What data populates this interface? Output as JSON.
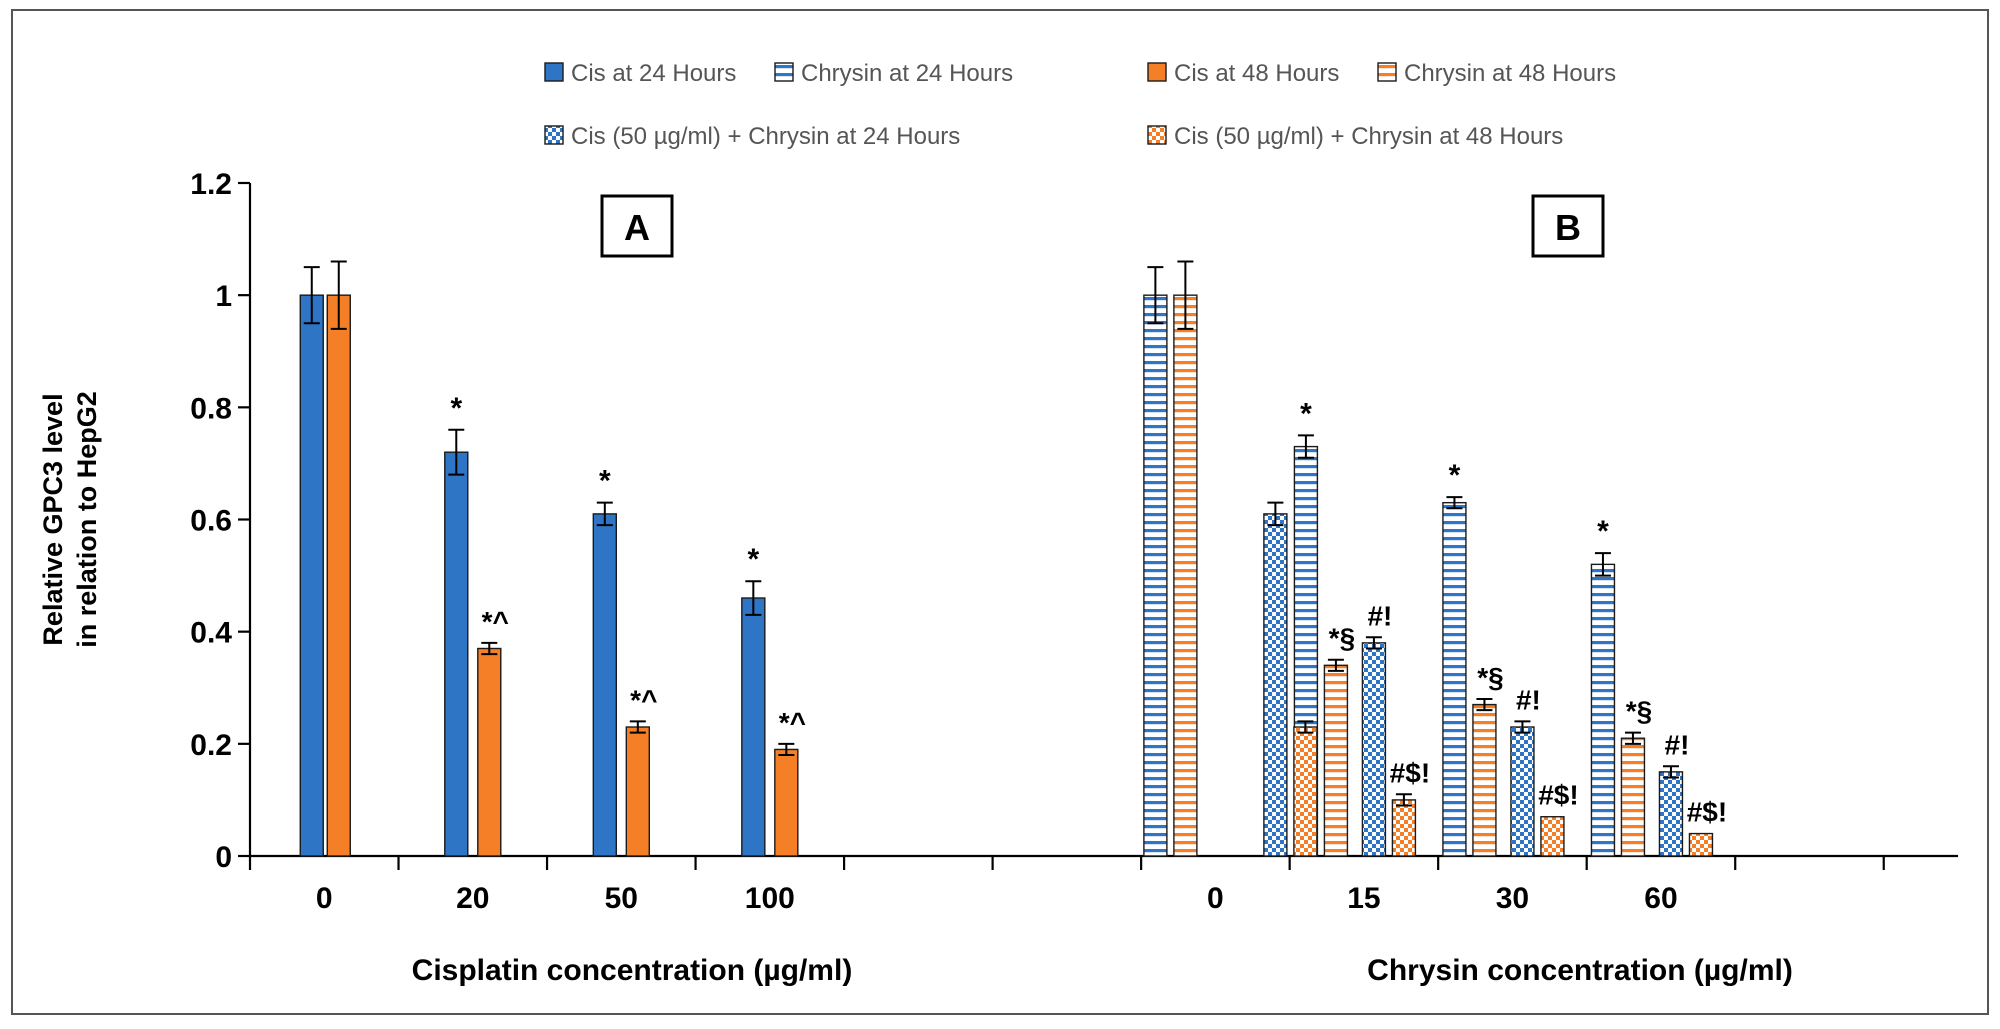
{
  "chart_data": {
    "type": "bar",
    "ylabel": [
      "Relative GPC3 level",
      "in relation to HepG2"
    ],
    "ylim": [
      0,
      1.2
    ],
    "yticks": [
      0,
      0.2,
      0.4,
      0.6,
      0.8,
      1,
      1.2
    ],
    "ytick_labels": [
      "0",
      "0.2",
      "0.4",
      "0.6",
      "0.8",
      "1",
      "1.2"
    ],
    "legend": {
      "placement": "top-center",
      "entries": [
        {
          "name": "Cis at 24 Hours",
          "pattern": "solid-blue"
        },
        {
          "name": "Chrysin at 24 Hours",
          "pattern": "hstripe-blue"
        },
        {
          "name": "Cis at 48 Hours",
          "pattern": "solid-orange"
        },
        {
          "name": "Chrysin at 48 Hours",
          "pattern": "hstripe-orange"
        },
        {
          "name": "Cis (50 µg/ml) + Chrysin at 24 Hours",
          "pattern": "check-blue"
        },
        {
          "name": "Cis (50 µg/ml) + Chrysin at 48 Hours",
          "pattern": "check-orange"
        }
      ]
    },
    "colors": {
      "blue": "#2e75c6",
      "orange": "#f57f26",
      "axis": "#000000",
      "bar_edge": "#1a1a1a"
    },
    "panels": [
      {
        "label": "A",
        "xlabel": "Cisplatin concentration (µg/ml)",
        "categories": [
          "0",
          "20",
          "50",
          "100"
        ],
        "series": [
          {
            "name": "Cis at 24 Hours",
            "pattern": "solid-blue",
            "values": [
              1.0,
              0.72,
              0.61,
              0.46
            ],
            "errors": [
              0.05,
              0.04,
              0.02,
              0.03
            ],
            "annotations": [
              "",
              "*",
              "*",
              "*"
            ]
          },
          {
            "name": "Cis at 48 Hours",
            "pattern": "solid-orange",
            "values": [
              1.0,
              0.37,
              0.23,
              0.19
            ],
            "errors": [
              0.06,
              0.01,
              0.01,
              0.01
            ],
            "annotations": [
              "",
              "*^",
              "*^",
              "*^"
            ]
          }
        ]
      },
      {
        "label": "B",
        "xlabel": "Chrysin concentration (µg/ml)",
        "categories": [
          "0",
          "15",
          "30",
          "60"
        ],
        "series": [
          {
            "name": "Chrysin at 24 Hours",
            "pattern": "hstripe-blue",
            "values": [
              1.0,
              0.73,
              0.63,
              0.52
            ],
            "errors": [
              0.05,
              0.02,
              0.01,
              0.02
            ],
            "annotations": [
              "",
              "*",
              "*",
              "*"
            ]
          },
          {
            "name": "Chrysin at 48 Hours",
            "pattern": "hstripe-orange",
            "values": [
              1.0,
              0.34,
              0.27,
              0.21
            ],
            "errors": [
              0.06,
              0.01,
              0.01,
              0.01
            ],
            "annotations": [
              "",
              "*§",
              "*§",
              "*§"
            ]
          },
          {
            "name": "Cis (50 µg/ml) + Chrysin at 24 Hours",
            "pattern": "check-blue",
            "values": [
              0.61,
              0.38,
              0.23,
              0.15
            ],
            "errors": [
              0.02,
              0.01,
              0.01,
              0.01
            ],
            "annotations": [
              "",
              "#!",
              "#!",
              "#!"
            ]
          },
          {
            "name": "Cis (50 µg/ml) + Chrysin at 48 Hours",
            "pattern": "check-orange",
            "values": [
              0.23,
              0.1,
              0.07,
              0.04
            ],
            "errors": [
              0.01,
              0.01,
              0.0,
              0.0
            ],
            "annotations": [
              "",
              "#$!",
              "#$!",
              "#$!"
            ]
          }
        ]
      }
    ]
  }
}
